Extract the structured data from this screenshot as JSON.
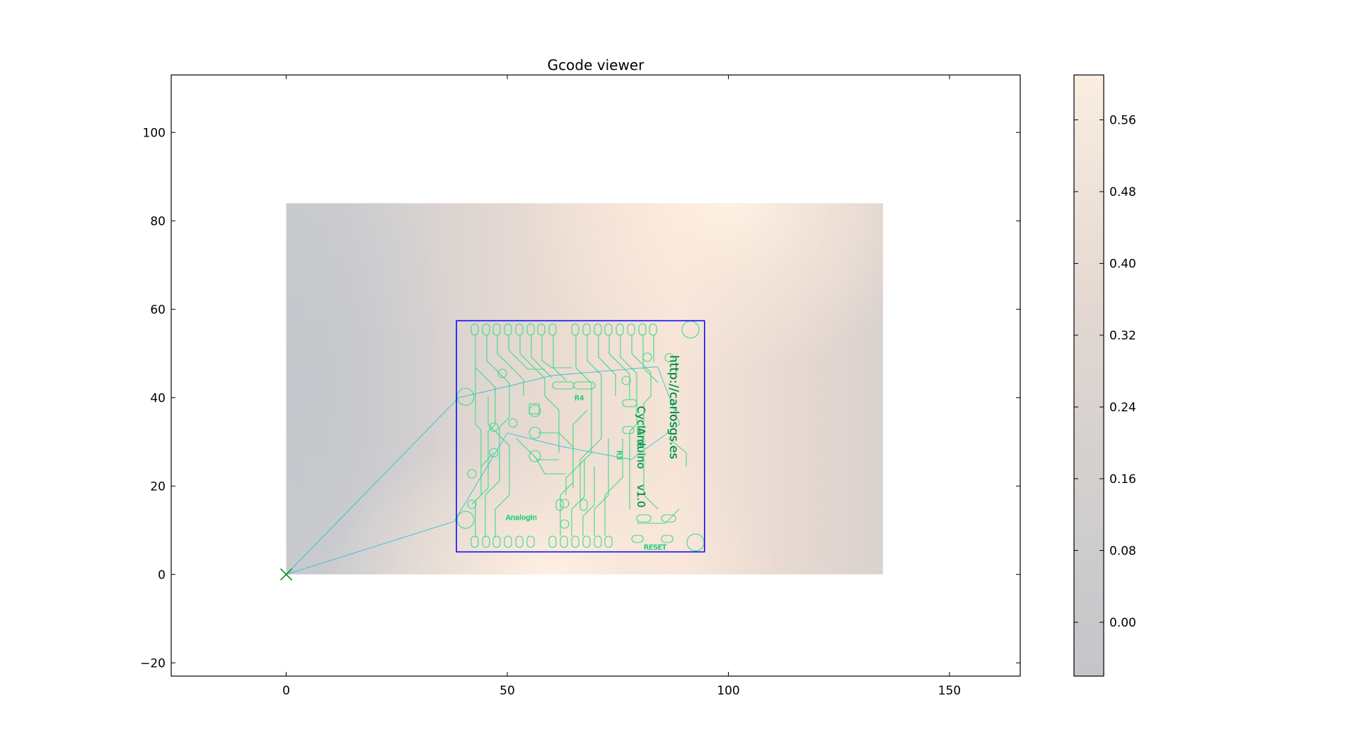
{
  "chart_data": [
    {
      "type": "heatmap",
      "title": "Gcode viewer",
      "xlabel": "",
      "ylabel": "",
      "xlim": [
        -26,
        166
      ],
      "ylim": [
        -23,
        113
      ],
      "x_ticks": [
        0,
        50,
        100,
        150
      ],
      "y_ticks": [
        -20,
        0,
        20,
        40,
        60,
        80,
        100
      ],
      "grid": false,
      "legend": "none",
      "heightmap": {
        "x_range": [
          0,
          135
        ],
        "y_range": [
          0,
          84
        ],
        "colormap": [
          "#c6c8cc",
          "#fff1e4"
        ],
        "value_range": [
          -0.06,
          0.61
        ],
        "peaks": [
          {
            "x": 100,
            "y": 84,
            "value": 0.6
          },
          {
            "x": 60,
            "y": 0,
            "value": 0.55
          },
          {
            "x": 5,
            "y": 42,
            "value": -0.06
          }
        ]
      },
      "toolpath_bounds": {
        "xmin": 38.5,
        "xmax": 94.6,
        "ymin": 5.1,
        "ymax": 57.4,
        "color": "#0000ff"
      },
      "origin_marker": {
        "x": 0,
        "y": 0,
        "symbol": "x",
        "color": "#008000"
      },
      "travel_moves": {
        "color": "#17becf",
        "points": [
          [
            0,
            0
          ],
          [
            39,
            40
          ],
          [
            52,
            43
          ],
          [
            60,
            45
          ],
          [
            84,
            47
          ],
          [
            89,
            34
          ],
          [
            78,
            26
          ],
          [
            62,
            29
          ],
          [
            50,
            32
          ],
          [
            44,
            22
          ],
          [
            38,
            12
          ],
          [
            0,
            0
          ]
        ]
      },
      "traces_color": "#3ddc84",
      "board_labels": [
        "http://carlosgs.es",
        "R4",
        "R3",
        "AnalogIn",
        "RESET",
        "Cyclone",
        "Arduino",
        "v1.0"
      ]
    },
    {
      "type": "heatmap",
      "colorbar": true,
      "ticks": [
        0.0,
        0.08,
        0.16,
        0.24,
        0.32,
        0.4,
        0.48,
        0.56
      ],
      "tick_labels": [
        "0.00",
        "0.08",
        "0.16",
        "0.24",
        "0.32",
        "0.40",
        "0.48",
        "0.56"
      ],
      "range": [
        -0.06,
        0.61
      ],
      "colormap": [
        "#c6c8cc",
        "#fff1e4"
      ]
    }
  ]
}
